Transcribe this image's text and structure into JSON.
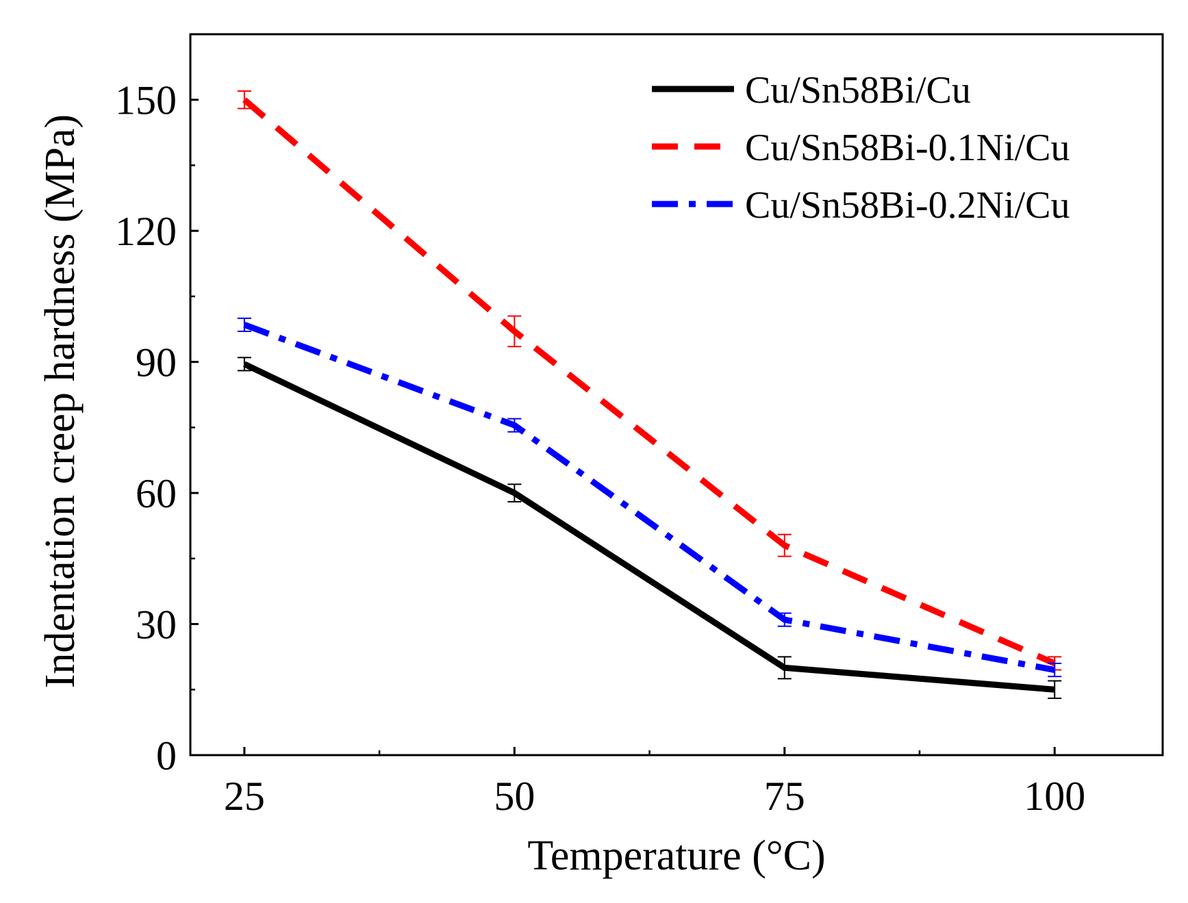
{
  "chart_data": {
    "type": "line",
    "title": "",
    "xlabel": "Temperature (°C)",
    "ylabel": "Indentation creep hardness (MPa)",
    "x": [
      25,
      50,
      75,
      100
    ],
    "xlim": [
      20,
      110
    ],
    "ylim": [
      0,
      165
    ],
    "xticks": [
      25,
      50,
      75,
      100
    ],
    "xtick_labels": [
      "25",
      "50",
      "75",
      "100"
    ],
    "yticks": [
      0,
      30,
      60,
      90,
      120,
      150
    ],
    "ytick_labels": [
      "0",
      "30",
      "60",
      "90",
      "120",
      "150"
    ],
    "legend_position": "top-right",
    "grid": false,
    "series": [
      {
        "name": "Cu/Sn58Bi/Cu",
        "color": "#000000",
        "style": "solid",
        "values": [
          89.5,
          60,
          20,
          15
        ],
        "errors": [
          1.5,
          2,
          2.5,
          2
        ]
      },
      {
        "name": "Cu/Sn58Bi-0.1Ni/Cu",
        "color": "#ff0000",
        "style": "dashed",
        "values": [
          150,
          97,
          48,
          21
        ],
        "errors": [
          2,
          3.5,
          2.5,
          1.5
        ]
      },
      {
        "name": "Cu/Sn58Bi-0.2Ni/Cu",
        "color": "#0000ff",
        "style": "dashdot",
        "values": [
          98.5,
          75.5,
          31,
          19.5
        ],
        "errors": [
          1.5,
          1.5,
          1.5,
          1.5
        ]
      }
    ]
  }
}
